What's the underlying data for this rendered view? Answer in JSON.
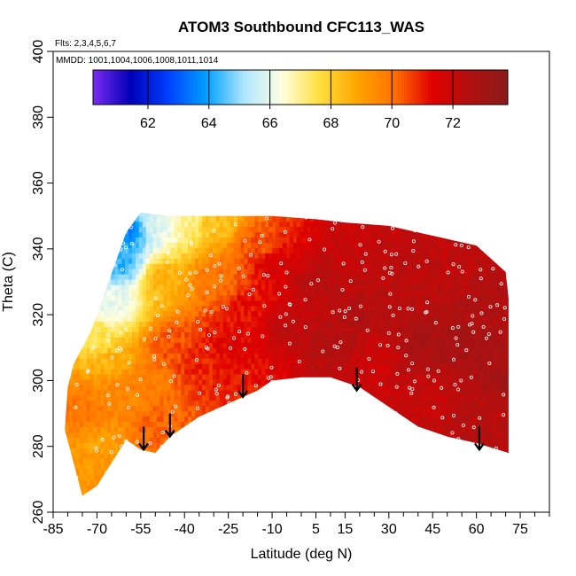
{
  "chart_data": {
    "type": "heatmap",
    "title": "ATOM3 Southbound CFC113_WAS",
    "flights_note": "Flts: 2,3,4,5,6,7",
    "dates_note": "MMDD: 1001,1004,1006,1008,1011,1014",
    "xlabel": "Latitude (deg N)",
    "ylabel": "Theta (C)",
    "xlim": [
      -85,
      85
    ],
    "ylim": [
      260,
      400
    ],
    "x_ticks": [
      -85,
      -70,
      -55,
      -40,
      -25,
      -10,
      5,
      15,
      30,
      45,
      60,
      75
    ],
    "x_tick_labels": [
      "-85",
      "-70",
      "-55",
      "-40",
      "-25",
      "-10",
      "5",
      "15",
      "30",
      "45",
      "60",
      "75"
    ],
    "y_ticks": [
      260,
      280,
      300,
      320,
      340,
      360,
      380,
      400
    ],
    "y_tick_labels": [
      "260",
      "280",
      "300",
      "320",
      "340",
      "360",
      "380",
      "400"
    ],
    "colorbar": {
      "range": [
        60.2,
        73.8
      ],
      "ticks": [
        62,
        64,
        66,
        68,
        70,
        72
      ],
      "tick_labels": [
        "62",
        "64",
        "66",
        "68",
        "70",
        "72"
      ],
      "colors": [
        "#7a2bf0",
        "#0000b8",
        "#0040ff",
        "#00a0ff",
        "#aee6ff",
        "#ffffe0",
        "#ffe040",
        "#ffa500",
        "#ff7000",
        "#e00000",
        "#b01010",
        "#8b1a1a"
      ]
    },
    "domain_top": [
      [
        -55,
        351
      ],
      [
        -45,
        350
      ],
      [
        -20,
        350
      ],
      [
        -10,
        350
      ],
      [
        5,
        349
      ],
      [
        15,
        348
      ],
      [
        30,
        347
      ],
      [
        45,
        344
      ],
      [
        60,
        341
      ],
      [
        70,
        333
      ],
      [
        71,
        325
      ]
    ],
    "domain_bottom": [
      [
        71,
        278
      ],
      [
        60,
        281
      ],
      [
        50,
        283
      ],
      [
        40,
        286
      ],
      [
        30,
        292
      ],
      [
        20,
        298
      ],
      [
        10,
        301
      ],
      [
        0,
        301
      ],
      [
        -10,
        300
      ],
      [
        -15,
        297
      ],
      [
        -25,
        293
      ],
      [
        -35,
        289
      ],
      [
        -45,
        283
      ],
      [
        -50,
        278
      ],
      [
        -55,
        279
      ],
      [
        -60,
        282
      ],
      [
        -65,
        275
      ],
      [
        -70,
        268
      ],
      [
        -75,
        265
      ],
      [
        -78,
        275
      ],
      [
        -81,
        285
      ],
      [
        -80,
        298
      ],
      [
        -78,
        305
      ],
      [
        -72,
        315
      ],
      [
        -66,
        330
      ],
      [
        -60,
        345
      ]
    ],
    "field_samples": [
      {
        "lat": -60,
        "theta": 345,
        "value": 63.5
      },
      {
        "lat": -62,
        "theta": 335,
        "value": 64.2
      },
      {
        "lat": -65,
        "theta": 322,
        "value": 66.0
      },
      {
        "lat": -70,
        "theta": 312,
        "value": 67.5
      },
      {
        "lat": -50,
        "theta": 347,
        "value": 65.8
      },
      {
        "lat": -40,
        "theta": 348,
        "value": 67.0
      },
      {
        "lat": -30,
        "theta": 348,
        "value": 68.3
      },
      {
        "lat": -48,
        "theta": 330,
        "value": 68.6
      },
      {
        "lat": -30,
        "theta": 330,
        "value": 70.0
      },
      {
        "lat": -75,
        "theta": 290,
        "value": 70.0
      },
      {
        "lat": -65,
        "theta": 295,
        "value": 69.5
      },
      {
        "lat": -55,
        "theta": 300,
        "value": 69.8
      },
      {
        "lat": -45,
        "theta": 310,
        "value": 70.5
      },
      {
        "lat": -35,
        "theta": 305,
        "value": 71.0
      },
      {
        "lat": -25,
        "theta": 310,
        "value": 71.4
      },
      {
        "lat": -20,
        "theta": 320,
        "value": 71.2
      },
      {
        "lat": -10,
        "theta": 335,
        "value": 71.6
      },
      {
        "lat": -5,
        "theta": 315,
        "value": 72.2
      },
      {
        "lat": 5,
        "theta": 330,
        "value": 72.4
      },
      {
        "lat": 10,
        "theta": 310,
        "value": 72.6
      },
      {
        "lat": 15,
        "theta": 340,
        "value": 72.0
      },
      {
        "lat": 20,
        "theta": 320,
        "value": 72.5
      },
      {
        "lat": 25,
        "theta": 305,
        "value": 71.8
      },
      {
        "lat": 35,
        "theta": 330,
        "value": 72.3
      },
      {
        "lat": 40,
        "theta": 310,
        "value": 72.8
      },
      {
        "lat": 45,
        "theta": 295,
        "value": 72.0
      },
      {
        "lat": 50,
        "theta": 335,
        "value": 72.2
      },
      {
        "lat": 55,
        "theta": 310,
        "value": 72.9
      },
      {
        "lat": 60,
        "theta": 290,
        "value": 72.4
      },
      {
        "lat": 65,
        "theta": 320,
        "value": 72.6
      },
      {
        "lat": 70,
        "theta": 300,
        "value": 73.0
      },
      {
        "lat": -15,
        "theta": 340,
        "value": 70.4
      },
      {
        "lat": -25,
        "theta": 296,
        "value": 71.0
      },
      {
        "lat": -50,
        "theta": 285,
        "value": 70.2
      },
      {
        "lat": -70,
        "theta": 280,
        "value": 69.0
      },
      {
        "lat": -65,
        "theta": 305,
        "value": 68.6
      }
    ],
    "tropopause_arrows": [
      {
        "lat": -54,
        "theta_top": 286,
        "theta_tip": 279
      },
      {
        "lat": -45,
        "theta_top": 290,
        "theta_tip": 283
      },
      {
        "lat": -20,
        "theta_top": 302,
        "theta_tip": 295
      },
      {
        "lat": 19,
        "theta_top": 304,
        "theta_tip": 297
      },
      {
        "lat": 61,
        "theta_top": 286,
        "theta_tip": 279
      }
    ],
    "grid": false,
    "legend": "top colorbar"
  }
}
